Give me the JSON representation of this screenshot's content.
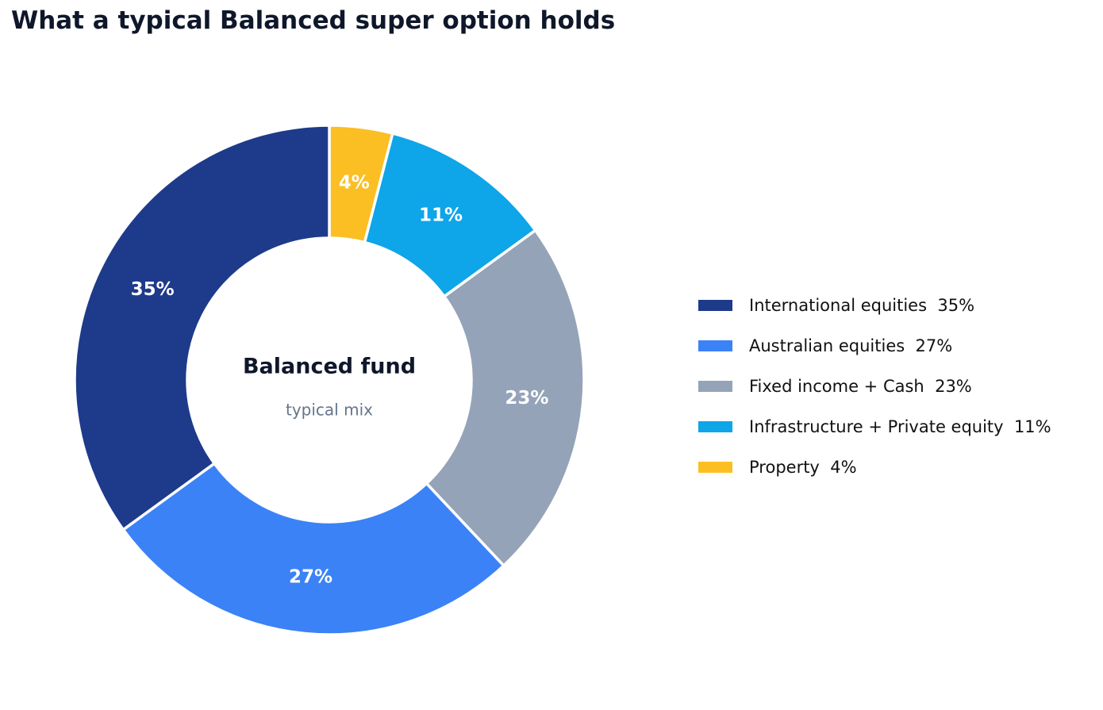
{
  "chart_data": {
    "type": "pie",
    "variant": "donut",
    "title": "What a typical Balanced super option holds",
    "center_title": "Balanced fund",
    "center_subtitle": "typical mix",
    "slices": [
      {
        "label": "Property",
        "value": 4,
        "display": "4%",
        "color": "#fbbf24"
      },
      {
        "label": "Infrastructure + Private equity",
        "value": 11,
        "display": "11%",
        "color": "#0ea5e9"
      },
      {
        "label": "Fixed income + Cash",
        "value": 23,
        "display": "23%",
        "color": "#94a3b8"
      },
      {
        "label": "Australian equities",
        "value": 27,
        "display": "27%",
        "color": "#3b82f6"
      },
      {
        "label": "International equities",
        "value": 35,
        "display": "35%",
        "color": "#1e3a8a"
      }
    ],
    "legend": {
      "placement": "right",
      "items": [
        {
          "text": "International equities  35%",
          "color": "#1e3a8a"
        },
        {
          "text": "Australian equities  27%",
          "color": "#3b82f6"
        },
        {
          "text": "Fixed income + Cash  23%",
          "color": "#94a3b8"
        },
        {
          "text": "Infrastructure + Private equity  11%",
          "color": "#0ea5e9"
        },
        {
          "text": "Property  4%",
          "color": "#fbbf24"
        }
      ]
    }
  }
}
